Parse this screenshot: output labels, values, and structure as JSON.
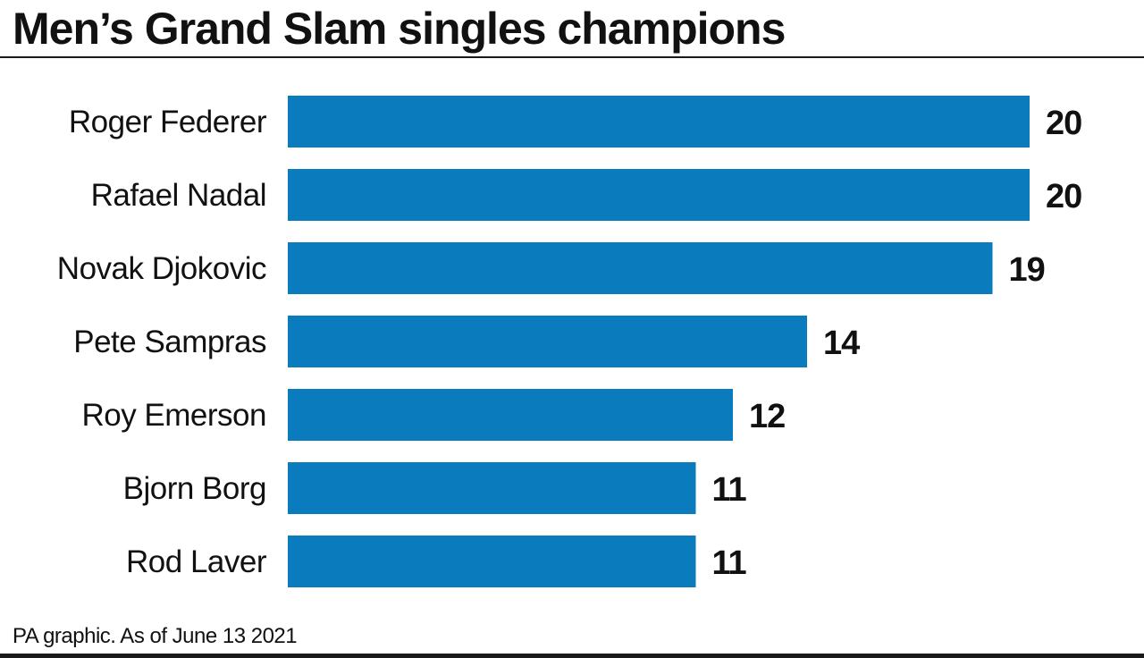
{
  "title": "Men’s Grand Slam singles champions",
  "source": "PA graphic. As of June 13 2021",
  "colors": {
    "bar": "#0A7CBD",
    "text": "#111111",
    "rule": "#1a1a1a"
  },
  "chart_data": {
    "type": "bar",
    "orientation": "horizontal",
    "title": "Men’s Grand Slam singles champions",
    "xlabel": "",
    "ylabel": "",
    "grid": false,
    "legend": "none",
    "categories": [
      "Roger Federer",
      "Rafael Nadal",
      "Novak Djokovic",
      "Pete Sampras",
      "Roy Emerson",
      "Bjorn Borg",
      "Rod Laver"
    ],
    "values": [
      20,
      20,
      19,
      14,
      12,
      11,
      11
    ],
    "xlim": [
      0,
      20
    ]
  }
}
